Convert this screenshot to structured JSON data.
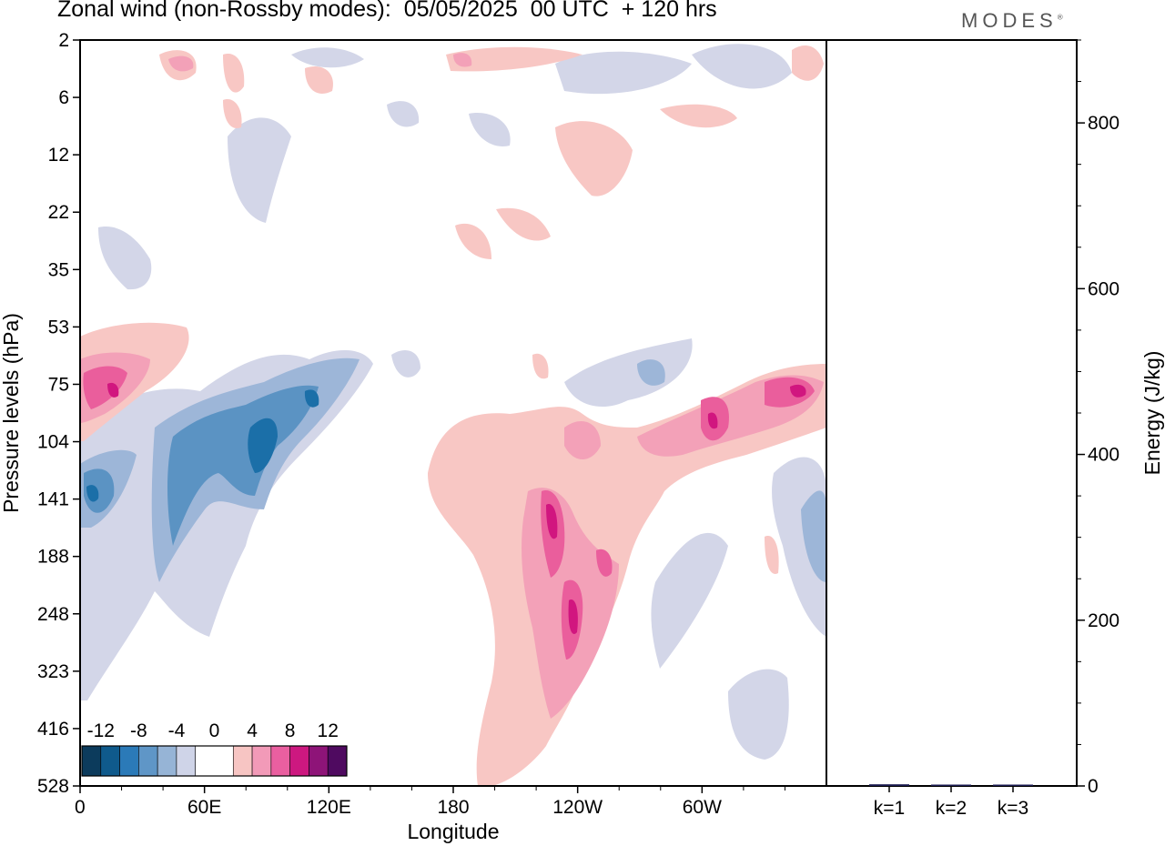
{
  "title": "Zonal wind (non-Rossby modes):  05/05/2025  00 UTC  + 120 hrs",
  "brand": "MODES",
  "brand_mark": "®",
  "colors": {
    "neg_strong": "#1b6fa8",
    "neg_mid": "#5b93c3",
    "neg_light": "#9db6d8",
    "neg_faint": "#d3d6e8",
    "pos_faint": "#f8c7c4",
    "pos_light": "#f3a1b8",
    "pos_mid": "#ea5e9c",
    "pos_strong": "#d1167f"
  },
  "chart_data": [
    {
      "type": "heatmap",
      "title": "Zonal wind (non-Rossby modes):  05/05/2025  00 UTC  + 120 hrs",
      "xlabel": "Longitude",
      "ylabel": "Pressure levels (hPa)",
      "x_ticks": [
        "0",
        "60E",
        "120E",
        "180",
        "120W",
        "60W"
      ],
      "x_tick_degrees_east": [
        0,
        60,
        120,
        180,
        240,
        300
      ],
      "x_range_degrees_east": [
        0,
        360
      ],
      "y_ticks": [
        "2",
        "6",
        "12",
        "22",
        "35",
        "53",
        "75",
        "104",
        "141",
        "188",
        "248",
        "323",
        "416",
        "528"
      ],
      "y_ticks_evenly_spaced": true,
      "colorbar": {
        "labels": [
          "-12",
          "-8",
          "-4",
          "0",
          "4",
          "8",
          "12"
        ],
        "bins": [
          {
            "range": [
              -14,
              -12
            ],
            "color": "#0c3b5c"
          },
          {
            "range": [
              -12,
              -10
            ],
            "color": "#0f5a8c"
          },
          {
            "range": [
              -10,
              -8
            ],
            "color": "#2b7ab8"
          },
          {
            "range": [
              -8,
              -6
            ],
            "color": "#5f96c7"
          },
          {
            "range": [
              -6,
              -4
            ],
            "color": "#96b4d6"
          },
          {
            "range": [
              -4,
              -2
            ],
            "color": "#cfd4e8"
          },
          {
            "range": [
              -2,
              2
            ],
            "color": "#ffffff"
          },
          {
            "range": [
              2,
              4
            ],
            "color": "#f7c5c3"
          },
          {
            "range": [
              4,
              6
            ],
            "color": "#f29ab8"
          },
          {
            "range": [
              6,
              8
            ],
            "color": "#ea5fa0"
          },
          {
            "range": [
              8,
              10
            ],
            "color": "#cd1880"
          },
          {
            "range": [
              10,
              12
            ],
            "color": "#8e1478"
          },
          {
            "range": [
              12,
              14
            ],
            "color": "#4f0a60"
          }
        ]
      },
      "features": [
        {
          "sign": "negative",
          "peak": -10,
          "lon_range": [
            0,
            125
          ],
          "pressure_range": [
            "35",
            "248"
          ]
        },
        {
          "sign": "positive",
          "peak": 8,
          "lon_range": [
            165,
            265
          ],
          "pressure_range": [
            "104",
            "528"
          ]
        },
        {
          "sign": "positive",
          "peak": 8,
          "lon_range": [
            220,
            360
          ],
          "pressure_range": [
            "53",
            "141"
          ]
        },
        {
          "sign": "positive",
          "peak": 8,
          "lon_range": [
            0,
            40
          ],
          "pressure_range": [
            "53",
            "104"
          ]
        },
        {
          "sign": "negative",
          "peak": -6,
          "lon_range": [
            230,
            360
          ],
          "pressure_range": [
            "141",
            "528"
          ]
        }
      ]
    },
    {
      "type": "bar",
      "ylabel": "Energy (J/kg)",
      "categories": [
        "k=1",
        "k=2",
        "k=3"
      ],
      "values": [
        2,
        1,
        1
      ],
      "ylim": [
        0,
        900
      ],
      "y_ticks": [
        "0",
        "200",
        "400",
        "600",
        "800"
      ],
      "bar_color": "#1a1a50"
    }
  ]
}
